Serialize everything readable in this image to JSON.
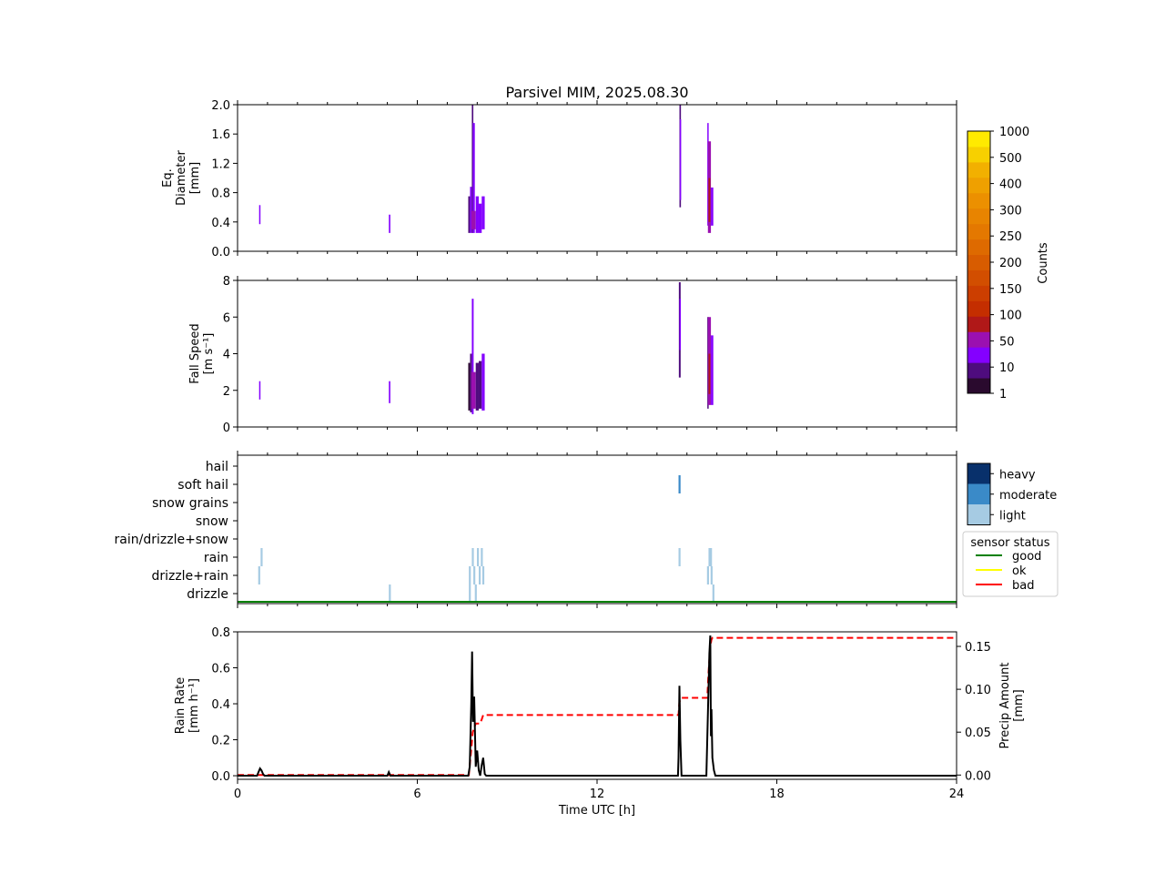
{
  "title": "Parsivel MIM, 2025.08.30",
  "colors": {
    "axis": "#000000",
    "rain_rate_line": "#000000",
    "precip_line": "#ff0000",
    "status_good": "#008000",
    "status_ok": "#ffff00",
    "status_bad": "#ff0000",
    "intensity_light": "#a6cbe3",
    "intensity_moderate": "#3a8ac8",
    "intensity_heavy": "#08306b",
    "counts_scale": [
      "#2a0a2e",
      "#4e0c7e",
      "#8400ff",
      "#9b10b0",
      "#b01818",
      "#c42e00",
      "#cc3e00",
      "#d24e00",
      "#d85c00",
      "#de6a00",
      "#e47800",
      "#e88400",
      "#ec9000",
      "#efa000",
      "#f2b000",
      "#f7d000",
      "#ffea00"
    ]
  },
  "chart_data": [
    {
      "type": "heatmap",
      "ylabel_lines": [
        "Eq.",
        "Diameter",
        "[mm]"
      ],
      "ylim": [
        0,
        2.0
      ],
      "yticks": [
        "0.0",
        "0.4",
        "0.8",
        "1.2",
        "1.6",
        "2.0"
      ],
      "ytick_values": [
        0,
        0.4,
        0.8,
        1.2,
        1.6,
        2.0
      ],
      "bands": [
        {
          "t0": 0.72,
          "t1": 0.76,
          "y0": 0.37,
          "y1": 0.63,
          "level": 2
        },
        {
          "t0": 5.05,
          "t1": 5.1,
          "y0": 0.25,
          "y1": 0.5,
          "level": 2
        },
        {
          "t0": 7.7,
          "t1": 7.76,
          "y0": 0.25,
          "y1": 0.75,
          "level": 1
        },
        {
          "t0": 7.76,
          "t1": 7.82,
          "y0": 0.25,
          "y1": 0.88,
          "level": 2
        },
        {
          "t0": 7.82,
          "t1": 7.87,
          "y0": 0.25,
          "y1": 2.0,
          "level": 1
        },
        {
          "t0": 7.85,
          "t1": 7.92,
          "y0": 0.25,
          "y1": 1.75,
          "level": 2
        },
        {
          "t0": 7.8,
          "t1": 7.95,
          "y0": 0.3,
          "y1": 0.55,
          "level": 3
        },
        {
          "t0": 7.95,
          "t1": 8.05,
          "y0": 0.25,
          "y1": 0.75,
          "level": 2
        },
        {
          "t0": 8.05,
          "t1": 8.15,
          "y0": 0.25,
          "y1": 0.65,
          "level": 2
        },
        {
          "t0": 8.15,
          "t1": 8.25,
          "y0": 0.3,
          "y1": 0.75,
          "level": 2
        },
        {
          "t0": 14.75,
          "t1": 14.8,
          "y0": 0.6,
          "y1": 2.0,
          "level": 1
        },
        {
          "t0": 14.76,
          "t1": 14.8,
          "y0": 0.7,
          "y1": 1.8,
          "level": 2
        },
        {
          "t0": 15.68,
          "t1": 15.72,
          "y0": 0.35,
          "y1": 1.75,
          "level": 2
        },
        {
          "t0": 15.7,
          "t1": 15.8,
          "y0": 0.25,
          "y1": 1.5,
          "level": 3
        },
        {
          "t0": 15.72,
          "t1": 15.78,
          "y0": 0.4,
          "y1": 1.0,
          "level": 4
        },
        {
          "t0": 15.8,
          "t1": 15.88,
          "y0": 0.35,
          "y1": 0.87,
          "level": 2
        }
      ]
    },
    {
      "type": "heatmap",
      "ylabel_lines": [
        "Fall Speed",
        "[m s⁻¹]"
      ],
      "ylim": [
        0,
        8
      ],
      "yticks": [
        "0",
        "2",
        "4",
        "6",
        "8"
      ],
      "ytick_values": [
        0,
        2,
        4,
        6,
        8
      ],
      "bands": [
        {
          "t0": 0.72,
          "t1": 0.76,
          "y0": 1.5,
          "y1": 2.5,
          "level": 2
        },
        {
          "t0": 5.05,
          "t1": 5.1,
          "y0": 1.3,
          "y1": 2.5,
          "level": 2
        },
        {
          "t0": 7.7,
          "t1": 7.76,
          "y0": 0.9,
          "y1": 3.5,
          "level": 0
        },
        {
          "t0": 7.76,
          "t1": 7.82,
          "y0": 0.8,
          "y1": 4.0,
          "level": 1
        },
        {
          "t0": 7.82,
          "t1": 7.88,
          "y0": 0.7,
          "y1": 7.0,
          "level": 2
        },
        {
          "t0": 7.8,
          "t1": 7.95,
          "y0": 1.0,
          "y1": 3.0,
          "level": 3
        },
        {
          "t0": 7.95,
          "t1": 8.05,
          "y0": 0.9,
          "y1": 3.5,
          "level": 1
        },
        {
          "t0": 8.05,
          "t1": 8.15,
          "y0": 1.0,
          "y1": 3.6,
          "level": 1
        },
        {
          "t0": 8.15,
          "t1": 8.25,
          "y0": 0.9,
          "y1": 4.0,
          "level": 2
        },
        {
          "t0": 14.73,
          "t1": 14.79,
          "y0": 2.7,
          "y1": 7.9,
          "level": 1
        },
        {
          "t0": 14.75,
          "t1": 14.79,
          "y0": 4.2,
          "y1": 7.0,
          "level": 2
        },
        {
          "t0": 15.68,
          "t1": 15.72,
          "y0": 1.0,
          "y1": 6.0,
          "level": 1
        },
        {
          "t0": 15.7,
          "t1": 15.8,
          "y0": 1.2,
          "y1": 6.0,
          "level": 3
        },
        {
          "t0": 15.72,
          "t1": 15.78,
          "y0": 1.8,
          "y1": 4.0,
          "level": 4
        },
        {
          "t0": 15.8,
          "t1": 15.88,
          "y0": 1.2,
          "y1": 5.0,
          "level": 2
        }
      ]
    },
    {
      "type": "bar",
      "categories": [
        "drizzle",
        "drizzle+rain",
        "rain",
        "rain/drizzle+snow",
        "snow",
        "snow grains",
        "soft hail",
        "hail"
      ],
      "events": [
        {
          "t": 0.72,
          "cat": 1,
          "intensity": "light"
        },
        {
          "t": 0.8,
          "cat": 2,
          "intensity": "light"
        },
        {
          "t": 5.08,
          "cat": 0,
          "intensity": "light"
        },
        {
          "t": 7.75,
          "cat": 0,
          "intensity": "light"
        },
        {
          "t": 7.75,
          "cat": 1,
          "intensity": "light"
        },
        {
          "t": 7.85,
          "cat": 2,
          "intensity": "light"
        },
        {
          "t": 7.9,
          "cat": 1,
          "intensity": "light"
        },
        {
          "t": 7.95,
          "cat": 0,
          "intensity": "light"
        },
        {
          "t": 8.02,
          "cat": 2,
          "intensity": "light"
        },
        {
          "t": 8.08,
          "cat": 1,
          "intensity": "light"
        },
        {
          "t": 8.15,
          "cat": 2,
          "intensity": "light"
        },
        {
          "t": 8.2,
          "cat": 1,
          "intensity": "light"
        },
        {
          "t": 14.75,
          "cat": 2,
          "intensity": "light"
        },
        {
          "t": 14.75,
          "cat": 6,
          "intensity": "moderate"
        },
        {
          "t": 15.7,
          "cat": 1,
          "intensity": "light"
        },
        {
          "t": 15.75,
          "cat": 2,
          "intensity": "light"
        },
        {
          "t": 15.8,
          "cat": 2,
          "intensity": "light"
        },
        {
          "t": 15.82,
          "cat": 1,
          "intensity": "light"
        },
        {
          "t": 15.88,
          "cat": 0,
          "intensity": "light"
        }
      ],
      "sensor_status": "good",
      "intensity_legend": [
        "heavy",
        "moderate",
        "light"
      ],
      "status_legend": {
        "title": "sensor status",
        "items": [
          "good",
          "ok",
          "bad"
        ]
      }
    },
    {
      "type": "line",
      "xlabel": "Time UTC [h]",
      "xlim": [
        0,
        24
      ],
      "xticks": [
        "0",
        "6",
        "12",
        "18",
        "24"
      ],
      "xtick_values": [
        0,
        6,
        12,
        18,
        24
      ],
      "ylabel_lines": [
        "Rain Rate",
        "[mm h⁻¹]"
      ],
      "ylim": [
        -0.02,
        0.8
      ],
      "yticks": [
        "0.0",
        "0.2",
        "0.4",
        "0.6",
        "0.8"
      ],
      "ytick_values": [
        0,
        0.2,
        0.4,
        0.6,
        0.8
      ],
      "y2label_lines": [
        "Precip Amount",
        "[mm]"
      ],
      "y2lim": [
        -0.005,
        0.167
      ],
      "y2ticks": [
        "0.00",
        "0.05",
        "0.10",
        "0.15"
      ],
      "y2tick_values": [
        0,
        0.05,
        0.1,
        0.15
      ],
      "series": [
        {
          "name": "Rain Rate",
          "x": [
            0,
            0.65,
            0.7,
            0.75,
            0.8,
            0.85,
            0.9,
            5.0,
            5.05,
            5.1,
            7.7,
            7.75,
            7.8,
            7.83,
            7.86,
            7.9,
            7.95,
            8.0,
            8.05,
            8.1,
            8.15,
            8.2,
            8.25,
            8.3,
            14.7,
            14.72,
            14.75,
            14.78,
            14.82,
            15.65,
            15.7,
            15.75,
            15.78,
            15.8,
            15.82,
            15.85,
            15.9,
            15.95,
            24
          ],
          "y": [
            0,
            0,
            0.02,
            0.04,
            0.03,
            0.01,
            0,
            0,
            0.02,
            0,
            0,
            0.05,
            0.4,
            0.69,
            0.3,
            0.44,
            0.05,
            0.14,
            0.03,
            0.0,
            0.06,
            0.1,
            0.01,
            0,
            0,
            0.1,
            0.5,
            0.2,
            0,
            0,
            0.35,
            0.68,
            0.78,
            0.22,
            0.37,
            0.1,
            0.03,
            0,
            0
          ]
        },
        {
          "name": "Precip Amount",
          "x": [
            0,
            7.72,
            7.8,
            7.85,
            7.95,
            8.05,
            8.1,
            8.15,
            8.2,
            14.72,
            14.75,
            14.8,
            15.68,
            15.72,
            15.78,
            15.82,
            15.85,
            24
          ],
          "y": [
            0,
            0,
            0.03,
            0.05,
            0.06,
            0.06,
            0.06,
            0.065,
            0.07,
            0.07,
            0.085,
            0.09,
            0.09,
            0.12,
            0.15,
            0.158,
            0.16,
            0.16
          ]
        }
      ]
    }
  ],
  "colorbar": {
    "label": "Counts",
    "ticks": [
      "1",
      "10",
      "50",
      "100",
      "150",
      "200",
      "250",
      "300",
      "400",
      "500",
      "1000"
    ]
  }
}
